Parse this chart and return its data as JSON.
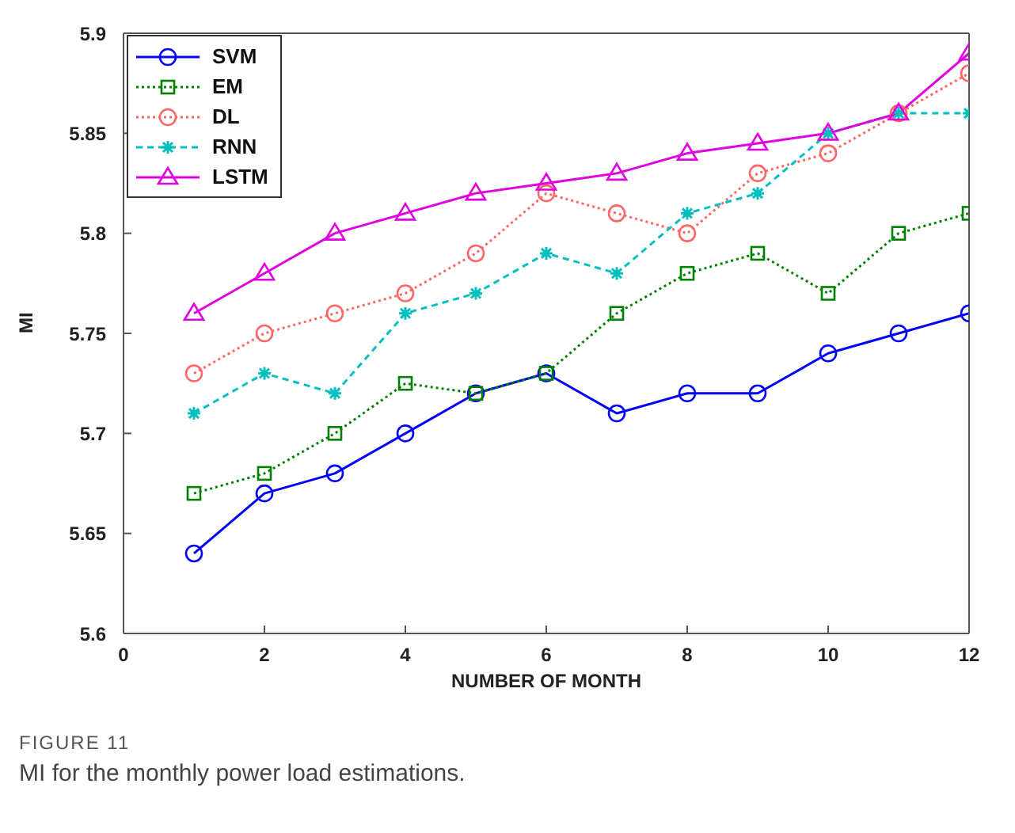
{
  "chart_data": {
    "type": "line",
    "xlabel": "NUMBER OF MONTH",
    "ylabel": "MI",
    "x": [
      1,
      2,
      3,
      4,
      5,
      6,
      7,
      8,
      9,
      10,
      11,
      12
    ],
    "xlim": [
      0,
      12
    ],
    "xticks": [
      0,
      2,
      4,
      6,
      8,
      10,
      12
    ],
    "ylim": [
      5.6,
      5.9
    ],
    "yticks": [
      5.6,
      5.65,
      5.7,
      5.75,
      5.8,
      5.85,
      5.9
    ],
    "grid": false,
    "legend": "top left",
    "series": [
      {
        "name": "SVM",
        "color": "#0000ff",
        "marker": "circle",
        "line_style": "solid",
        "values": [
          5.64,
          5.67,
          5.68,
          5.7,
          5.72,
          5.73,
          5.71,
          5.72,
          5.72,
          5.74,
          5.75,
          5.76
        ]
      },
      {
        "name": "EM",
        "color": "#008000",
        "marker": "square",
        "line_style": "dotted",
        "values": [
          5.67,
          5.68,
          5.7,
          5.725,
          5.72,
          5.73,
          5.76,
          5.78,
          5.79,
          5.77,
          5.8,
          5.81
        ]
      },
      {
        "name": "DL",
        "color": "#ff6666",
        "marker": "circle",
        "line_style": "dotted",
        "values": [
          5.73,
          5.75,
          5.76,
          5.77,
          5.79,
          5.82,
          5.81,
          5.8,
          5.83,
          5.84,
          5.86,
          5.88
        ]
      },
      {
        "name": "RNN",
        "color": "#00bfbf",
        "marker": "cross",
        "line_style": "dashed",
        "values": [
          5.71,
          5.73,
          5.72,
          5.76,
          5.77,
          5.79,
          5.78,
          5.81,
          5.82,
          5.85,
          5.86,
          5.86
        ]
      },
      {
        "name": "LSTM",
        "color": "#e000e0",
        "marker": "triangle",
        "line_style": "solid",
        "values": [
          5.76,
          5.78,
          5.8,
          5.81,
          5.82,
          5.825,
          5.83,
          5.84,
          5.845,
          5.85,
          5.86,
          5.89
        ]
      }
    ],
    "annotations": [
      "FIGURE 11",
      "MI for the monthly power load estimations."
    ]
  }
}
